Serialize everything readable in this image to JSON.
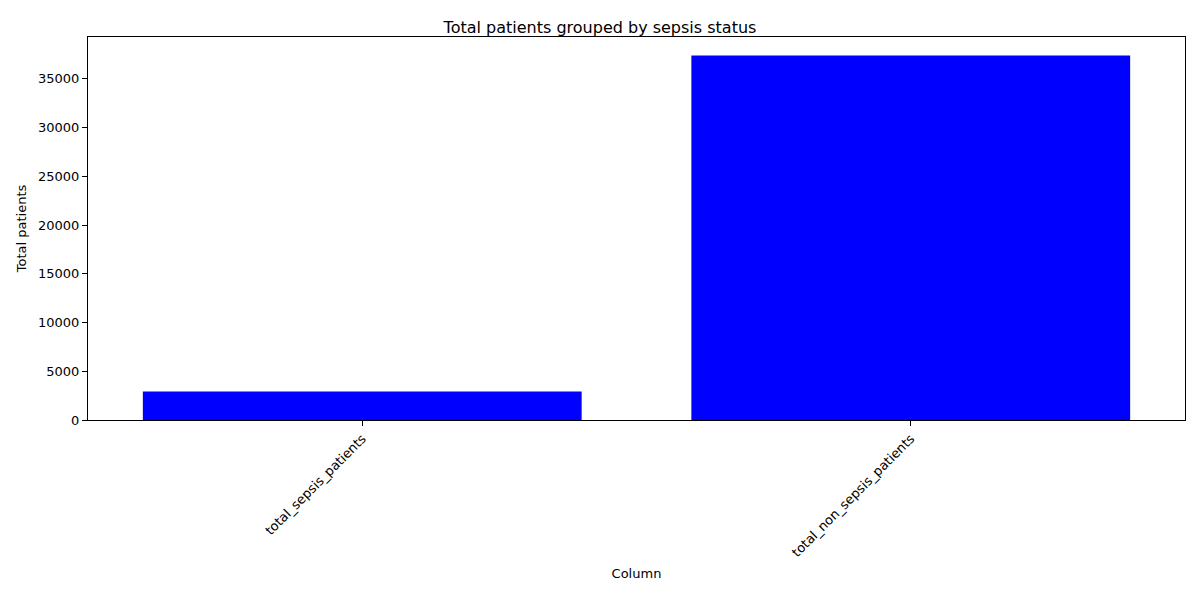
{
  "chart_data": {
    "type": "bar",
    "title": "Total patients grouped by sepsis status",
    "x_label": "Column",
    "y_label": "Total patients",
    "categories": [
      "total_sepsis_patients",
      "total_non_sepsis_patients"
    ],
    "values": [
      2932,
      37404
    ],
    "color": "#0000ff",
    "ylim": [
      0,
      39300
    ],
    "yticks": [
      0,
      5000,
      10000,
      15000,
      20000,
      25000,
      30000,
      35000
    ],
    "grid": false
  }
}
